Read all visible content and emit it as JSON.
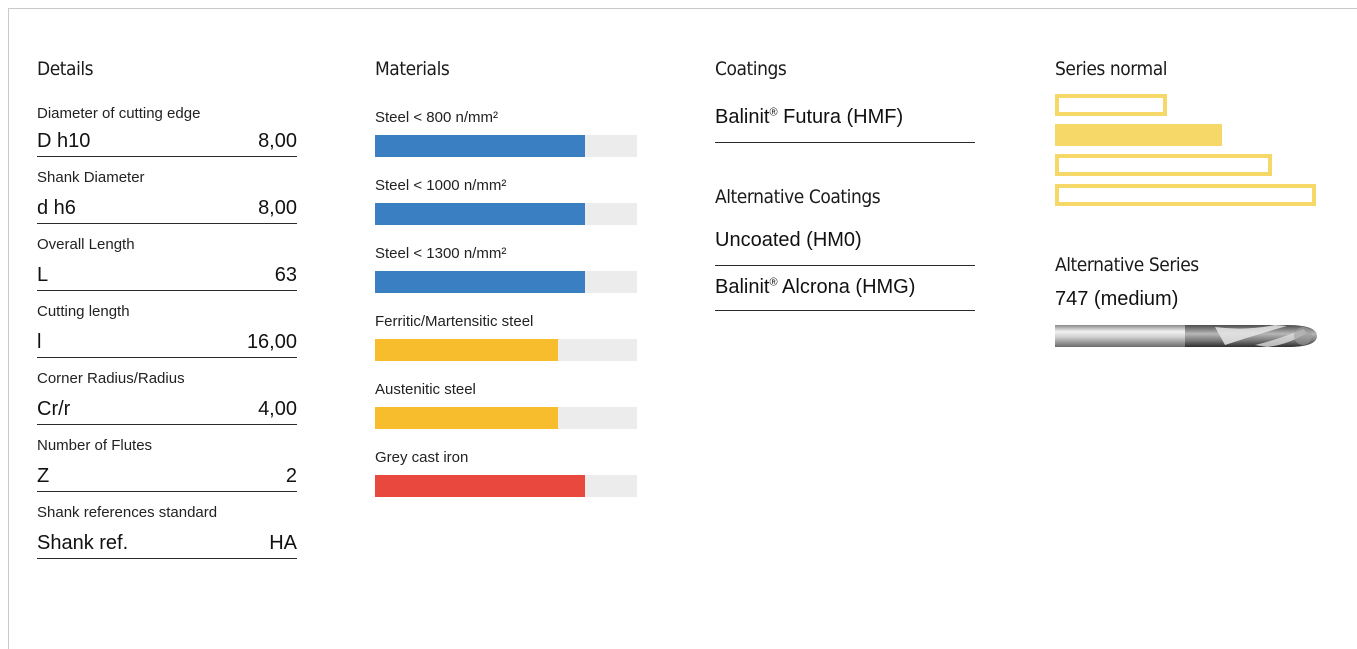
{
  "details": {
    "title": "Details",
    "rows": [
      {
        "label": "Diameter of cutting edge",
        "symbol": "D h10",
        "value": "8,00"
      },
      {
        "label": "Shank Diameter",
        "symbol": "d h6",
        "value": "8,00"
      },
      {
        "label": "Overall Length",
        "symbol": "L",
        "value": "63"
      },
      {
        "label": "Cutting length",
        "symbol": "l",
        "value": "16,00"
      },
      {
        "label": "Corner Radius/Radius",
        "symbol": "Cr/r",
        "value": "4,00"
      },
      {
        "label": "Number of Flutes",
        "symbol": "Z",
        "value": "2"
      },
      {
        "label": "Shank references standard",
        "symbol": "Shank ref.",
        "value": "HA"
      }
    ]
  },
  "materials": {
    "title": "Materials",
    "items": [
      {
        "label": "Steel < 800 n/mm²",
        "level": 0.8,
        "color": "#3a7fc2"
      },
      {
        "label": "Steel < 1000 n/mm²",
        "level": 0.8,
        "color": "#3a7fc2"
      },
      {
        "label": "Steel < 1300 n/mm²",
        "level": 0.8,
        "color": "#3a7fc2"
      },
      {
        "label": "Ferritic/Martensitic steel",
        "level": 0.7,
        "color": "#f7bd2c"
      },
      {
        "label": "Austenitic steel",
        "level": 0.7,
        "color": "#f7bd2c"
      },
      {
        "label": "Grey cast iron",
        "level": 0.8,
        "color": "#e8483e"
      }
    ]
  },
  "coatings": {
    "title": "Coatings",
    "primary": {
      "name": "Balinit",
      "mark": "®",
      "suffix": " Futura (HMF)"
    },
    "alt_title": "Alternative Coatings",
    "alternatives": [
      {
        "name": "Uncoated (HM0)",
        "mark": "",
        "suffix": ""
      },
      {
        "name": "Balinit",
        "mark": "®",
        "suffix": " Alcrona (HMG)"
      }
    ]
  },
  "series": {
    "title": "Series normal",
    "bar_color": "#f5d868",
    "bars": [
      {
        "level": 0.43,
        "style": "outline"
      },
      {
        "level": 0.64,
        "style": "solid"
      },
      {
        "level": 0.83,
        "style": "outline"
      },
      {
        "level": 1.0,
        "style": "outline"
      }
    ],
    "alt_title": "Alternative Series",
    "alt_value": "747 (medium)",
    "tool_icon": "ball-end-mill-icon"
  }
}
